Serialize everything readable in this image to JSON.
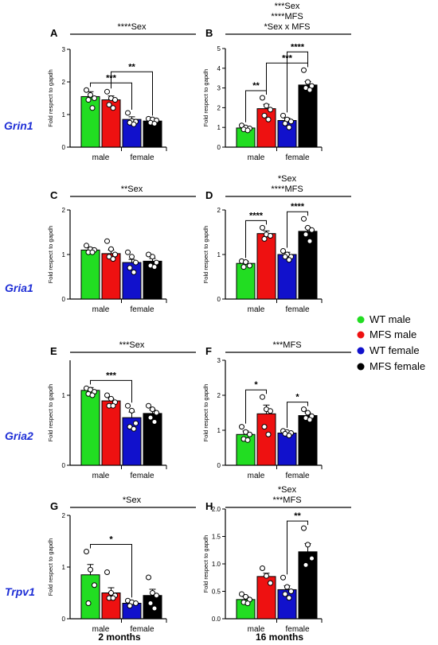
{
  "legend": [
    {
      "label": "WT male",
      "color": "#22dd22"
    },
    {
      "label": "MFS male",
      "color": "#ee1111"
    },
    {
      "label": "WT female",
      "color": "#1111cc"
    },
    {
      "label": "MFS female",
      "color": "#000000"
    }
  ],
  "columns": [
    "2 months",
    "16 months"
  ],
  "rows": [
    "Grin1",
    "Gria1",
    "Gria2",
    "Trpv1"
  ],
  "y_axis_label": "Fold respect to gapdh",
  "group_labels": [
    "male",
    "female"
  ],
  "chart_data": [
    {
      "id": "A",
      "type": "bar",
      "categories": [
        "WT male",
        "MFS male",
        "WT female",
        "MFS female"
      ],
      "values": [
        1.55,
        1.45,
        0.85,
        0.8
      ],
      "errors": [
        0.15,
        0.12,
        0.08,
        0.05
      ],
      "points": [
        [
          1.75,
          1.6,
          1.5,
          1.45,
          1.2
        ],
        [
          1.7,
          1.5,
          1.45,
          1.3,
          1.2
        ],
        [
          1.05,
          0.8,
          0.78,
          0.75,
          0.7
        ],
        [
          0.87,
          0.85,
          0.82,
          0.75,
          0.72
        ]
      ],
      "ylim": [
        0,
        3
      ],
      "yticks": [
        0,
        1,
        2,
        3
      ],
      "annotations": [
        "****Sex"
      ],
      "comparisons": [
        {
          "from": 0,
          "to": 2,
          "label": "***"
        },
        {
          "from": 1,
          "to": 3,
          "label": "**"
        }
      ]
    },
    {
      "id": "B",
      "type": "bar",
      "categories": [
        "WT male",
        "MFS male",
        "WT female",
        "MFS female"
      ],
      "values": [
        0.97,
        1.95,
        1.35,
        3.15
      ],
      "errors": [
        0.08,
        0.22,
        0.12,
        0.18
      ],
      "points": [
        [
          1.1,
          1.0,
          0.95,
          0.9,
          0.85
        ],
        [
          2.5,
          2.1,
          1.9,
          1.6,
          1.4
        ],
        [
          1.6,
          1.4,
          1.3,
          1.2,
          1.0
        ],
        [
          3.9,
          3.3,
          3.1,
          3.0,
          2.9
        ]
      ],
      "ylim": [
        0,
        5
      ],
      "yticks": [
        0,
        1,
        2,
        3,
        4,
        5
      ],
      "annotations": [
        "***Sex",
        "****MFS",
        "*Sex x MFS"
      ],
      "comparisons": [
        {
          "from": 0,
          "to": 1,
          "label": "**"
        },
        {
          "from": 1,
          "to": 3,
          "label": "***"
        },
        {
          "from": 2,
          "to": 3,
          "label": "****"
        }
      ]
    },
    {
      "id": "C",
      "type": "bar",
      "categories": [
        "WT male",
        "MFS male",
        "WT female",
        "MFS female"
      ],
      "values": [
        1.1,
        1.02,
        0.82,
        0.85
      ],
      "errors": [
        0.05,
        0.08,
        0.07,
        0.06
      ],
      "points": [
        [
          1.2,
          1.12,
          1.1,
          1.05,
          1.05
        ],
        [
          1.3,
          1.12,
          1.0,
          0.95,
          0.9
        ],
        [
          1.05,
          0.95,
          0.82,
          0.7,
          0.6
        ],
        [
          1.0,
          0.95,
          0.82,
          0.75,
          0.72
        ]
      ],
      "ylim": [
        0,
        2
      ],
      "yticks": [
        0,
        1,
        2
      ],
      "annotations": [
        "**Sex"
      ],
      "comparisons": []
    },
    {
      "id": "D",
      "type": "bar",
      "categories": [
        "WT male",
        "MFS male",
        "WT female",
        "MFS female"
      ],
      "values": [
        0.8,
        1.47,
        1.0,
        1.52
      ],
      "errors": [
        0.05,
        0.06,
        0.05,
        0.08
      ],
      "points": [
        [
          0.85,
          0.83,
          0.75,
          0.72
        ],
        [
          1.6,
          1.45,
          1.42,
          1.35
        ],
        [
          1.08,
          1.0,
          0.95,
          0.95,
          0.88
        ],
        [
          1.8,
          1.6,
          1.55,
          1.45,
          1.3
        ]
      ],
      "ylim": [
        0,
        2
      ],
      "yticks": [
        0,
        1,
        2
      ],
      "annotations": [
        "*Sex",
        "****MFS"
      ],
      "comparisons": [
        {
          "from": 0,
          "to": 1,
          "label": "****"
        },
        {
          "from": 2,
          "to": 3,
          "label": "****"
        }
      ]
    },
    {
      "id": "E",
      "type": "bar",
      "categories": [
        "WT male",
        "MFS male",
        "WT female",
        "MFS female"
      ],
      "values": [
        1.07,
        0.92,
        0.68,
        0.74
      ],
      "errors": [
        0.04,
        0.03,
        0.08,
        0.05
      ],
      "points": [
        [
          1.1,
          1.08,
          1.05,
          1.02,
          1.0
        ],
        [
          1.0,
          0.95,
          0.9,
          0.85,
          0.85
        ],
        [
          0.85,
          0.78,
          0.6,
          0.55,
          0.52
        ],
        [
          0.85,
          0.8,
          0.75,
          0.68,
          0.62
        ]
      ],
      "ylim": [
        0,
        1.5
      ],
      "yticks": [
        0,
        1
      ],
      "annotations": [
        "***Sex"
      ],
      "comparisons": [
        {
          "from": 0,
          "to": 2,
          "label": "***"
        }
      ]
    },
    {
      "id": "F",
      "type": "bar",
      "categories": [
        "WT male",
        "MFS male",
        "WT female",
        "MFS female"
      ],
      "values": [
        0.88,
        1.47,
        0.92,
        1.42
      ],
      "errors": [
        0.1,
        0.25,
        0.04,
        0.08
      ],
      "points": [
        [
          1.1,
          0.95,
          0.88,
          0.75,
          0.72
        ],
        [
          1.95,
          1.6,
          1.55,
          1.1,
          0.88
        ],
        [
          0.98,
          0.95,
          0.92,
          0.9,
          0.85
        ],
        [
          1.6,
          1.5,
          1.4,
          1.35,
          1.3
        ]
      ],
      "ylim": [
        0,
        3
      ],
      "yticks": [
        0,
        1,
        2,
        3
      ],
      "annotations": [
        "***MFS"
      ],
      "comparisons": [
        {
          "from": 0,
          "to": 1,
          "label": "*"
        },
        {
          "from": 2,
          "to": 3,
          "label": "*"
        }
      ]
    },
    {
      "id": "G",
      "type": "bar",
      "categories": [
        "WT male",
        "MFS male",
        "WT female",
        "MFS female"
      ],
      "values": [
        0.85,
        0.5,
        0.3,
        0.45
      ],
      "errors": [
        0.2,
        0.1,
        0.03,
        0.12
      ],
      "points": [
        [
          1.3,
          0.95,
          0.65,
          0.3
        ],
        [
          0.9,
          0.5,
          0.45,
          0.4,
          0.4
        ],
        [
          0.35,
          0.32,
          0.3,
          0.25
        ],
        [
          0.8,
          0.5,
          0.45,
          0.3,
          0.2
        ]
      ],
      "ylim": [
        0,
        2
      ],
      "yticks": [
        0,
        1,
        2
      ],
      "annotations": [
        "*Sex"
      ],
      "comparisons": [
        {
          "from": 0,
          "to": 2,
          "label": "*"
        }
      ]
    },
    {
      "id": "H",
      "type": "bar",
      "categories": [
        "WT male",
        "MFS male",
        "WT female",
        "MFS female"
      ],
      "values": [
        0.35,
        0.77,
        0.53,
        1.22
      ],
      "errors": [
        0.05,
        0.06,
        0.07,
        0.15
      ],
      "points": [
        [
          0.45,
          0.4,
          0.35,
          0.3,
          0.28
        ],
        [
          0.92,
          0.78,
          0.65
        ],
        [
          0.75,
          0.58,
          0.5,
          0.45,
          0.38
        ],
        [
          1.65,
          1.35,
          1.1,
          0.98
        ]
      ],
      "ylim": [
        0,
        2
      ],
      "yticks": [
        0,
        0.5,
        1,
        1.5,
        2
      ],
      "ytick_labels": [
        "0.0",
        "0.5",
        "1.0",
        "1.5",
        "2.0"
      ],
      "annotations": [
        "*Sex",
        "***MFS"
      ],
      "comparisons": [
        {
          "from": 2,
          "to": 3,
          "label": "**"
        }
      ]
    }
  ]
}
